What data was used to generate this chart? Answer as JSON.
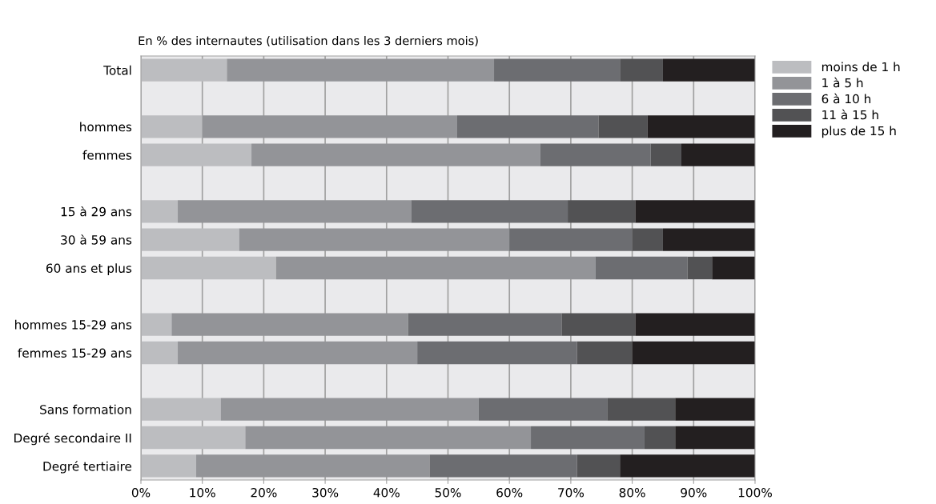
{
  "chart_data": {
    "type": "bar",
    "orientation": "horizontal",
    "stacked": true,
    "title": "En % des internautes (utilisation dans les 3 derniers mois)",
    "categories": [
      "Total",
      null,
      "hommes",
      "femmes",
      null,
      "15 à 29 ans",
      "30 à 59 ans",
      "60 ans et plus",
      null,
      "hommes 15-29 ans",
      "femmes 15-29 ans",
      null,
      "Sans formation",
      "Degré secondaire II",
      "Degré tertiaire"
    ],
    "series": [
      {
        "name": "moins de 1 h",
        "color": "#bcbdc0",
        "values": [
          14,
          null,
          10,
          18,
          null,
          6,
          16,
          22,
          null,
          5,
          6,
          null,
          13,
          17,
          9
        ]
      },
      {
        "name": "1 à 5 h",
        "color": "#939498",
        "values": [
          43.5,
          null,
          41.5,
          47,
          null,
          38,
          44,
          52,
          null,
          38.5,
          39,
          null,
          42,
          46.5,
          38
        ]
      },
      {
        "name": "6 à 10 h",
        "color": "#6c6d71",
        "values": [
          20.5,
          null,
          23,
          18,
          null,
          25.5,
          20,
          15,
          null,
          25,
          26,
          null,
          21,
          18.5,
          24
        ]
      },
      {
        "name": "11 à 15 h",
        "color": "#525254",
        "values": [
          7,
          null,
          8,
          5,
          null,
          11,
          5,
          4,
          null,
          12,
          9,
          null,
          11,
          5,
          7
        ]
      },
      {
        "name": "plus de 15 h",
        "color": "#231f20",
        "values": [
          15,
          null,
          17.5,
          12,
          null,
          19.5,
          15,
          7,
          null,
          19.5,
          20,
          null,
          13,
          13,
          22
        ]
      }
    ],
    "xlim": [
      0,
      100
    ],
    "xticks": [
      {
        "value": 0,
        "label": "0%"
      },
      {
        "value": 10,
        "label": "10%"
      },
      {
        "value": 20,
        "label": "20%"
      },
      {
        "value": 30,
        "label": "30%"
      },
      {
        "value": 40,
        "label": "40%"
      },
      {
        "value": 50,
        "label": "50%"
      },
      {
        "value": 60,
        "label": "60%"
      },
      {
        "value": 70,
        "label": "70%"
      },
      {
        "value": 80,
        "label": "80%"
      },
      {
        "value": 90,
        "label": "90%"
      },
      {
        "value": 100,
        "label": "100%"
      }
    ],
    "grid": "x",
    "legend": "top right"
  }
}
